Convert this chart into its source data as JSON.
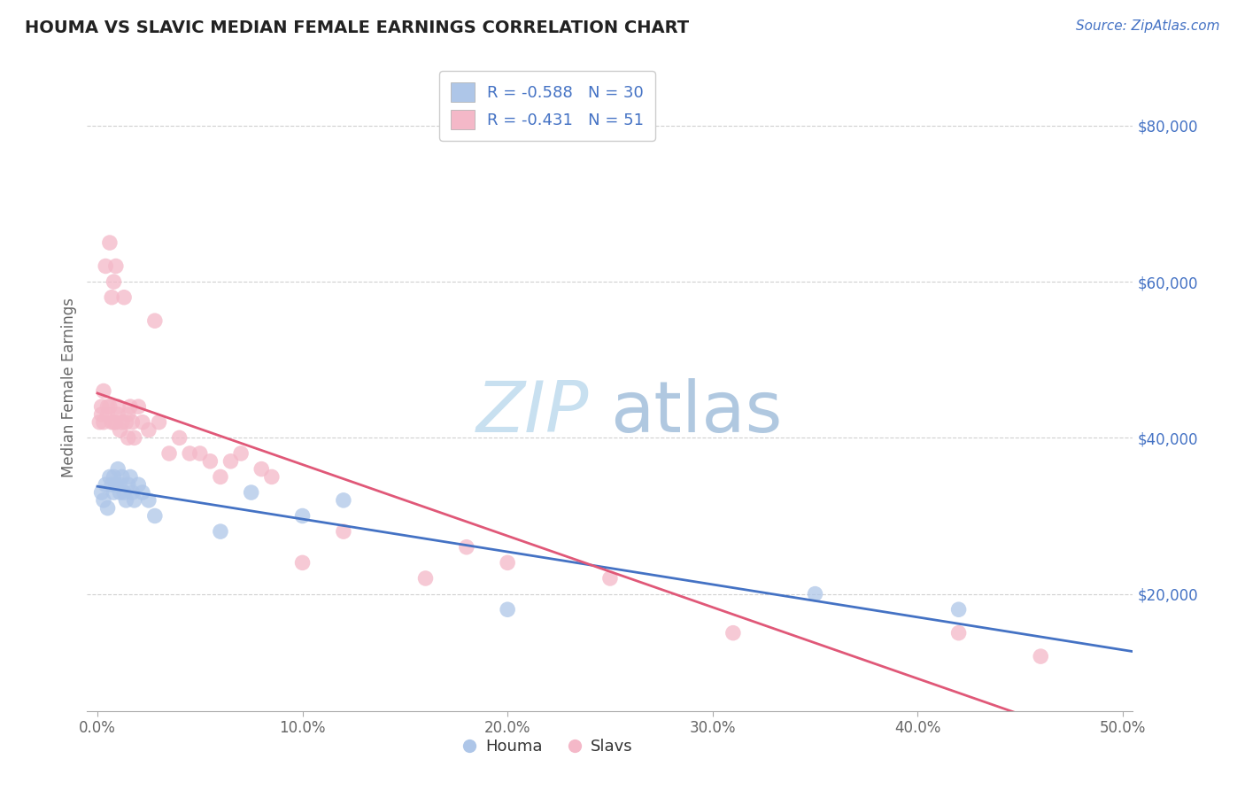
{
  "title": "HOUMA VS SLAVIC MEDIAN FEMALE EARNINGS CORRELATION CHART",
  "source_text": "Source: ZipAtlas.com",
  "ylabel": "Median Female Earnings",
  "xlim": [
    -0.005,
    0.505
  ],
  "ylim": [
    5000,
    88000
  ],
  "xtick_labels": [
    "0.0%",
    "10.0%",
    "20.0%",
    "30.0%",
    "40.0%",
    "50.0%"
  ],
  "xtick_vals": [
    0.0,
    0.1,
    0.2,
    0.3,
    0.4,
    0.5
  ],
  "ytick_vals": [
    20000,
    40000,
    60000,
    80000
  ],
  "ytick_labels": [
    "$20,000",
    "$40,000",
    "$60,000",
    "$80,000"
  ],
  "houma_color": "#aec6e8",
  "slavs_color": "#f4b8c8",
  "houma_edge_color": "#5b8dc8",
  "slavs_edge_color": "#e07090",
  "houma_line_color": "#4472c4",
  "slavs_line_color": "#e05878",
  "watermark_zip_color": "#c8e0f0",
  "watermark_atlas_color": "#b0c8e0",
  "background_color": "#ffffff",
  "grid_color": "#d0d0d0",
  "title_color": "#222222",
  "source_color": "#4472c4",
  "legend_text_color": "#333333",
  "houma_x": [
    0.002,
    0.003,
    0.004,
    0.005,
    0.006,
    0.007,
    0.008,
    0.008,
    0.009,
    0.01,
    0.011,
    0.011,
    0.012,
    0.013,
    0.014,
    0.015,
    0.016,
    0.017,
    0.018,
    0.02,
    0.022,
    0.025,
    0.028,
    0.06,
    0.075,
    0.1,
    0.12,
    0.2,
    0.35,
    0.42
  ],
  "houma_y": [
    33000,
    32000,
    34000,
    31000,
    35000,
    34000,
    33000,
    35000,
    34000,
    36000,
    33000,
    34000,
    35000,
    33000,
    32000,
    34000,
    35000,
    33000,
    32000,
    34000,
    33000,
    32000,
    30000,
    28000,
    33000,
    30000,
    32000,
    18000,
    20000,
    18000
  ],
  "slavs_x": [
    0.001,
    0.002,
    0.002,
    0.003,
    0.003,
    0.004,
    0.005,
    0.005,
    0.006,
    0.006,
    0.007,
    0.007,
    0.008,
    0.008,
    0.009,
    0.009,
    0.01,
    0.01,
    0.011,
    0.012,
    0.013,
    0.014,
    0.015,
    0.015,
    0.016,
    0.017,
    0.018,
    0.02,
    0.022,
    0.025,
    0.028,
    0.03,
    0.035,
    0.04,
    0.045,
    0.05,
    0.055,
    0.06,
    0.065,
    0.07,
    0.08,
    0.085,
    0.1,
    0.12,
    0.16,
    0.18,
    0.2,
    0.25,
    0.31,
    0.42,
    0.46
  ],
  "slavs_y": [
    42000,
    44000,
    43000,
    46000,
    42000,
    62000,
    44000,
    43000,
    65000,
    44000,
    58000,
    42000,
    60000,
    42000,
    62000,
    42000,
    44000,
    43000,
    41000,
    42000,
    58000,
    42000,
    43000,
    40000,
    44000,
    42000,
    40000,
    44000,
    42000,
    41000,
    55000,
    42000,
    38000,
    40000,
    38000,
    38000,
    37000,
    35000,
    37000,
    38000,
    36000,
    35000,
    24000,
    28000,
    22000,
    26000,
    24000,
    22000,
    15000,
    15000,
    12000
  ]
}
